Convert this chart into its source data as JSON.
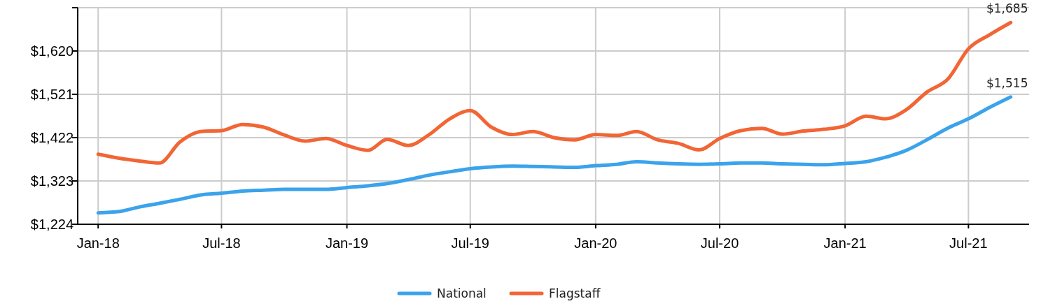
{
  "chart_data": {
    "type": "line",
    "x": [
      "2018-01",
      "2018-02",
      "2018-03",
      "2018-04",
      "2018-05",
      "2018-06",
      "2018-07",
      "2018-08",
      "2018-09",
      "2018-10",
      "2018-11",
      "2018-12",
      "2019-01",
      "2019-02",
      "2019-03",
      "2019-04",
      "2019-05",
      "2019-06",
      "2019-07",
      "2019-08",
      "2019-09",
      "2019-10",
      "2019-11",
      "2019-12",
      "2020-01",
      "2020-02",
      "2020-03",
      "2020-04",
      "2020-05",
      "2020-06",
      "2020-07",
      "2020-08",
      "2020-09",
      "2020-10",
      "2020-11",
      "2020-12",
      "2021-01",
      "2021-02",
      "2021-03",
      "2021-04",
      "2021-05",
      "2021-06",
      "2021-07",
      "2021-08",
      "2021-09"
    ],
    "series": [
      {
        "name": "National",
        "color": "#3ba3eb",
        "values": [
          1250,
          1253,
          1263,
          1272,
          1281,
          1291,
          1295,
          1300,
          1302,
          1304,
          1304,
          1304,
          1308,
          1312,
          1317,
          1326,
          1336,
          1344,
          1351,
          1355,
          1357,
          1356,
          1355,
          1354,
          1358,
          1361,
          1367,
          1364,
          1362,
          1361,
          1362,
          1364,
          1364,
          1362,
          1361,
          1360,
          1363,
          1367,
          1377,
          1393,
          1417,
          1444,
          1465,
          1491,
          1515
        ],
        "value_labels": [
          null,
          null,
          null,
          null,
          null,
          null,
          null,
          null,
          null,
          null,
          null,
          null,
          null,
          null,
          null,
          null,
          null,
          null,
          null,
          null,
          null,
          null,
          null,
          null,
          null,
          null,
          null,
          null,
          null,
          null,
          null,
          null,
          null,
          null,
          null,
          null,
          null,
          null,
          null,
          null,
          null,
          null,
          null,
          null,
          "$1,515"
        ]
      },
      {
        "name": "Flagstaff",
        "color": "#f26535",
        "values": [
          1384,
          1375,
          1369,
          1364,
          1412,
          1436,
          1438,
          1452,
          1446,
          1428,
          1414,
          1420,
          1404,
          1393,
          1418,
          1404,
          1428,
          1465,
          1484,
          1446,
          1429,
          1436,
          1422,
          1417,
          1429,
          1427,
          1436,
          1417,
          1409,
          1394,
          1420,
          1438,
          1443,
          1430,
          1437,
          1441,
          1449,
          1471,
          1465,
          1486,
          1526,
          1556,
          1625,
          1657,
          1685
        ],
        "value_labels": [
          null,
          null,
          null,
          null,
          null,
          null,
          null,
          null,
          null,
          null,
          null,
          null,
          null,
          null,
          null,
          null,
          null,
          null,
          null,
          null,
          null,
          null,
          null,
          null,
          null,
          null,
          null,
          null,
          null,
          null,
          null,
          null,
          null,
          null,
          null,
          null,
          null,
          null,
          null,
          null,
          null,
          null,
          null,
          null,
          "$1,685"
        ]
      }
    ],
    "xlim": [
      "2017-12-02",
      "2021-09-28"
    ],
    "xticks": [
      {
        "value": "2018-01",
        "label": "Jan-18"
      },
      {
        "value": "2018-07",
        "label": "Jul-18"
      },
      {
        "value": "2019-01",
        "label": "Jan-19"
      },
      {
        "value": "2019-07",
        "label": "Jul-19"
      },
      {
        "value": "2020-01",
        "label": "Jan-20"
      },
      {
        "value": "2020-07",
        "label": "Jul-20"
      },
      {
        "value": "2021-01",
        "label": "Jan-21"
      },
      {
        "value": "2021-07",
        "label": "Jul-21"
      }
    ],
    "ylim": [
      1224,
      1719
    ],
    "yticks": [
      {
        "value": 1224,
        "label": "$1,224"
      },
      {
        "value": 1323,
        "label": "$1,323"
      },
      {
        "value": 1422,
        "label": "$1,422"
      },
      {
        "value": 1521,
        "label": "$1,521"
      },
      {
        "value": 1620,
        "label": "$1,620"
      },
      {
        "value": 1719,
        "label": null
      }
    ],
    "grid": true,
    "legend": "bottom",
    "line_style": "solid"
  }
}
